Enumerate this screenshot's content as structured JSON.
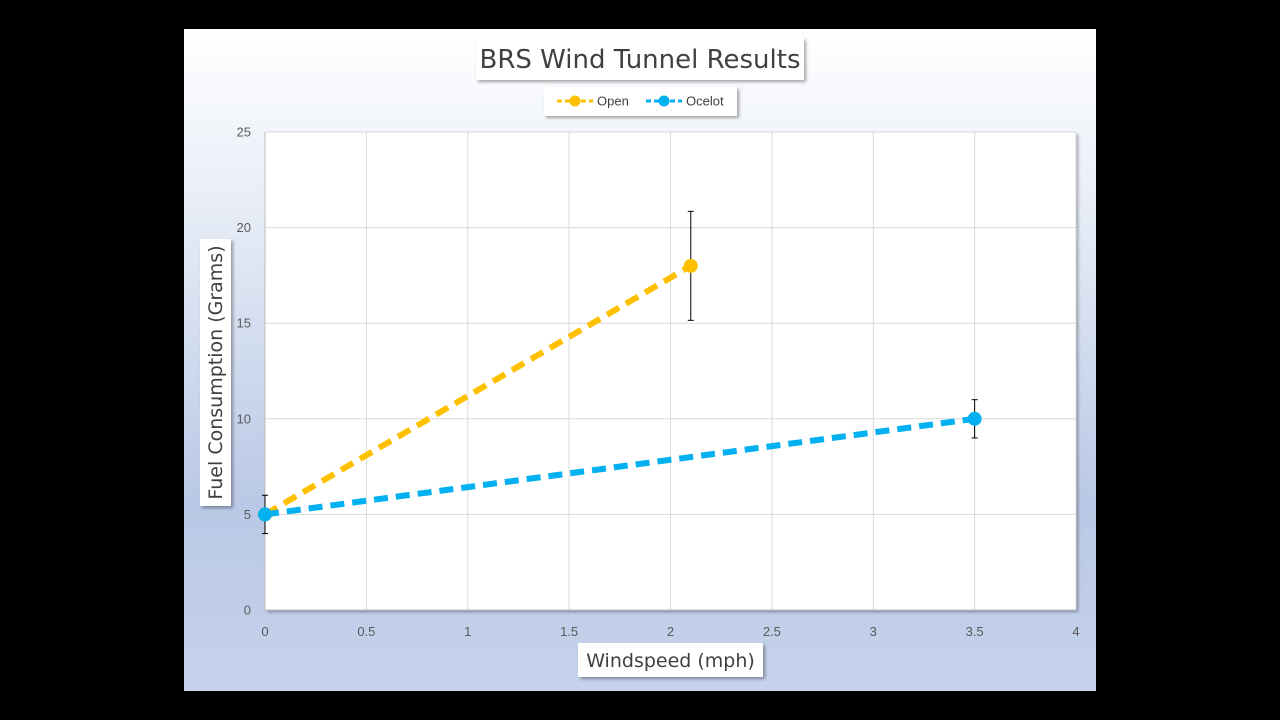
{
  "chart_data": {
    "type": "scatter",
    "title": "BRS Wind Tunnel Results",
    "xlabel": "Windspeed (mph)",
    "ylabel": "Fuel Consumption (Grams)",
    "xlim": [
      0,
      4
    ],
    "ylim": [
      0,
      25
    ],
    "x_ticks": [
      "0",
      "0.5",
      "1",
      "1.5",
      "2",
      "2.5",
      "3",
      "3.5",
      "4"
    ],
    "y_ticks": [
      "0",
      "5",
      "10",
      "15",
      "20",
      "25"
    ],
    "grid": true,
    "legend_position": "top",
    "series": [
      {
        "name": "Open",
        "color": "#FFC000",
        "line_style": "dashed",
        "points": [
          {
            "x": 0,
            "y": 5,
            "err": 0
          },
          {
            "x": 2.1,
            "y": 18,
            "err": 2.85
          }
        ]
      },
      {
        "name": "Ocelot",
        "color": "#00B0F0",
        "line_style": "dashed",
        "points": [
          {
            "x": 0,
            "y": 5,
            "err": 1
          },
          {
            "x": 3.5,
            "y": 10,
            "err": 1
          }
        ]
      }
    ]
  }
}
